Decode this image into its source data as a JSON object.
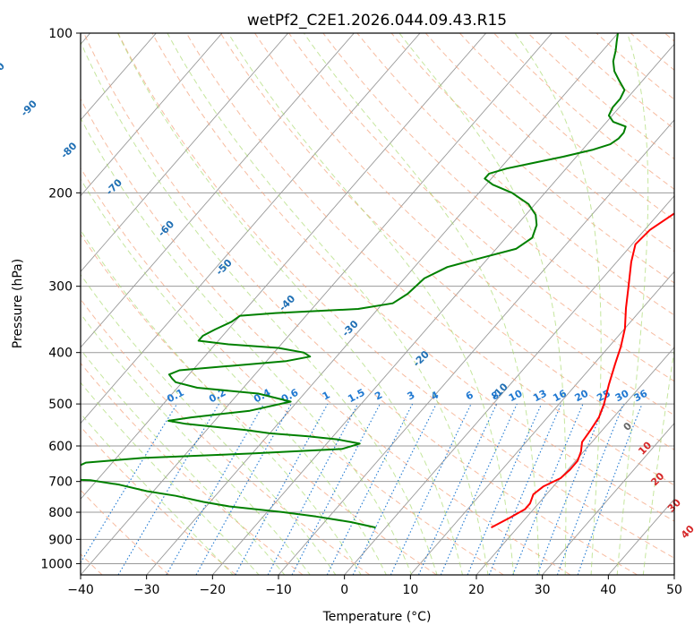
{
  "chart_data": {
    "type": "skew-t",
    "title": "wetPf2_C2E1.2026.044.09.43.R15",
    "xlabel": "Temperature (°C)",
    "ylabel": "Pressure (hPa)",
    "xlim": [
      -40,
      50
    ],
    "ylim": [
      1050,
      100
    ],
    "x_ticks": [
      -40,
      -30,
      -20,
      -10,
      0,
      10,
      20,
      30,
      40,
      50
    ],
    "y_ticks": [
      100,
      200,
      300,
      400,
      500,
      600,
      700,
      800,
      900,
      1000
    ],
    "grid": true,
    "colors": {
      "temperature": "#ff0000",
      "dewpoint": "#008000",
      "isotherm_grid": "#999999",
      "dry_adiabat": "#f4a582",
      "moist_adiabat": "#a6d96a",
      "mixing_ratio": "#1f78d1",
      "theta_label": "#1f6fb4",
      "theta_label_warm": "#d62728"
    },
    "series": [
      {
        "name": "Temperature",
        "points": [
          [
            855,
            16.0
          ],
          [
            820,
            17.5
          ],
          [
            790,
            18.7
          ],
          [
            770,
            18.7
          ],
          [
            740,
            18.0
          ],
          [
            715,
            18.5
          ],
          [
            690,
            20.0
          ],
          [
            665,
            20.3
          ],
          [
            640,
            20.3
          ],
          [
            615,
            19.6
          ],
          [
            590,
            18.5
          ],
          [
            560,
            18.2
          ],
          [
            530,
            17.8
          ],
          [
            500,
            16.8
          ],
          [
            460,
            15.0
          ],
          [
            420,
            13.2
          ],
          [
            390,
            11.8
          ],
          [
            360,
            10.0
          ],
          [
            330,
            7.5
          ],
          [
            300,
            5.0
          ],
          [
            270,
            2.2
          ],
          [
            250,
            0.5
          ],
          [
            235,
            0.8
          ],
          [
            220,
            2.2
          ],
          [
            205,
            4.2
          ],
          [
            190,
            6.5
          ],
          [
            175,
            7.5
          ],
          [
            160,
            8.0
          ],
          [
            150,
            8.4
          ],
          [
            140,
            8.4
          ],
          [
            130,
            8.5
          ],
          [
            120,
            8.8
          ],
          [
            110,
            8.3
          ],
          [
            100,
            8.2
          ]
        ]
      },
      {
        "name": "Dewpoint",
        "points": [
          [
            855,
            -1.5
          ],
          [
            835,
            -6.0
          ],
          [
            815,
            -12.0
          ],
          [
            800,
            -17.5
          ],
          [
            780,
            -26.5
          ],
          [
            765,
            -31.0
          ],
          [
            745,
            -36.0
          ],
          [
            730,
            -41.0
          ],
          [
            710,
            -46.0
          ],
          [
            696,
            -51.0
          ],
          [
            690,
            -60.0
          ],
          [
            660,
            -55.0
          ],
          [
            645,
            -54.0
          ],
          [
            632,
            -46.0
          ],
          [
            620,
            -30.0
          ],
          [
            608,
            -17.0
          ],
          [
            594,
            -15.0
          ],
          [
            583,
            -19.0
          ],
          [
            575,
            -24.0
          ],
          [
            568,
            -30.0
          ],
          [
            560,
            -34.0
          ],
          [
            545,
            -44.0
          ],
          [
            538,
            -47.0
          ],
          [
            530,
            -44.0
          ],
          [
            515,
            -36.0
          ],
          [
            495,
            -31.0
          ],
          [
            478,
            -37.0
          ],
          [
            466,
            -47.0
          ],
          [
            455,
            -51.0
          ],
          [
            448,
            -52.0
          ],
          [
            440,
            -53.0
          ],
          [
            432,
            -52.0
          ],
          [
            424,
            -45.0
          ],
          [
            415,
            -37.0
          ],
          [
            407,
            -34.0
          ],
          [
            400,
            -35.5
          ],
          [
            392,
            -40.0
          ],
          [
            386,
            -48.0
          ],
          [
            380,
            -53.0
          ],
          [
            372,
            -53.0
          ],
          [
            362,
            -52.0
          ],
          [
            350,
            -50.5
          ],
          [
            341,
            -50.0
          ],
          [
            337,
            -45.0
          ],
          [
            331,
            -33.0
          ],
          [
            323,
            -28.5
          ],
          [
            310,
            -27.5
          ],
          [
            290,
            -27.0
          ],
          [
            276,
            -25.0
          ],
          [
            265,
            -21.0
          ],
          [
            255,
            -17.0
          ],
          [
            243,
            -16.0
          ],
          [
            230,
            -17.0
          ],
          [
            220,
            -18.5
          ],
          [
            210,
            -21.0
          ],
          [
            200,
            -25.0
          ],
          [
            193,
            -29.0
          ],
          [
            188,
            -31.0
          ],
          [
            184,
            -31.0
          ],
          [
            180,
            -29.0
          ],
          [
            176,
            -26.0
          ],
          [
            171,
            -22.0
          ],
          [
            166,
            -18.5
          ],
          [
            162,
            -16.5
          ],
          [
            158,
            -16.0
          ],
          [
            154,
            -16.0
          ],
          [
            150,
            -16.5
          ],
          [
            147,
            -19.0
          ],
          [
            143,
            -20.5
          ],
          [
            138,
            -21.0
          ],
          [
            133,
            -21.0
          ],
          [
            128,
            -21.5
          ],
          [
            123,
            -23.5
          ],
          [
            118,
            -25.5
          ],
          [
            113,
            -27.0
          ],
          [
            108,
            -28.0
          ],
          [
            104,
            -29.0
          ],
          [
            100,
            -30.0
          ]
        ]
      }
    ],
    "theta_labels": [
      "-100",
      "-90",
      "-80",
      "-70",
      "-60",
      "-50",
      "-40",
      "-30",
      "-20",
      "-10",
      "0",
      "10",
      "20",
      "30",
      "40"
    ],
    "mixing_ratio_labels": [
      "0.1",
      "0.2",
      "0.4",
      "0.6",
      "1",
      "1.5",
      "2",
      "3",
      "4",
      "6",
      "8",
      "10",
      "13",
      "16",
      "20",
      "25",
      "30",
      "36"
    ],
    "mixing_ratio_values": [
      0.1,
      0.2,
      0.4,
      0.6,
      1,
      1.5,
      2,
      3,
      4,
      6,
      8,
      10,
      13,
      16,
      20,
      25,
      30,
      36
    ]
  }
}
